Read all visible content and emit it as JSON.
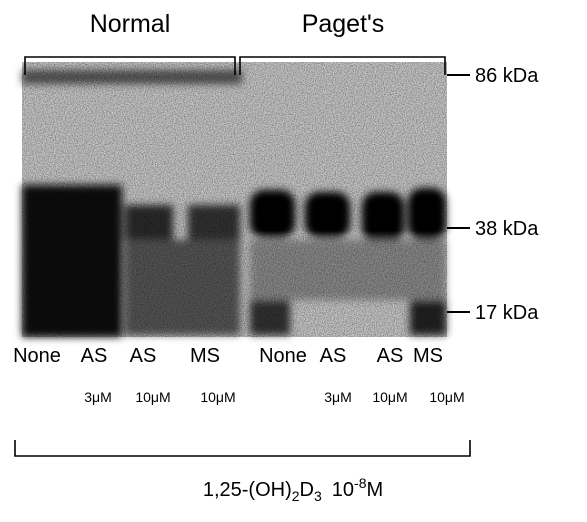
{
  "groups": [
    "Normal",
    "Paget's"
  ],
  "markers": [
    "86 kDa",
    "38 kDa",
    "17 kDa"
  ],
  "lanes": [
    "None",
    "AS",
    "AS",
    "MS",
    "None",
    "AS",
    "AS",
    "MS"
  ],
  "doses": [
    "3μM",
    "10μM",
    "10μM",
    "3μM",
    "10μM",
    "10μM"
  ],
  "treatment": {
    "base": "1,25-(OH)",
    "sub1": "2",
    "mid": "D",
    "sub2": "3",
    "conc": "10",
    "exp": "-8",
    "unit": "M"
  }
}
